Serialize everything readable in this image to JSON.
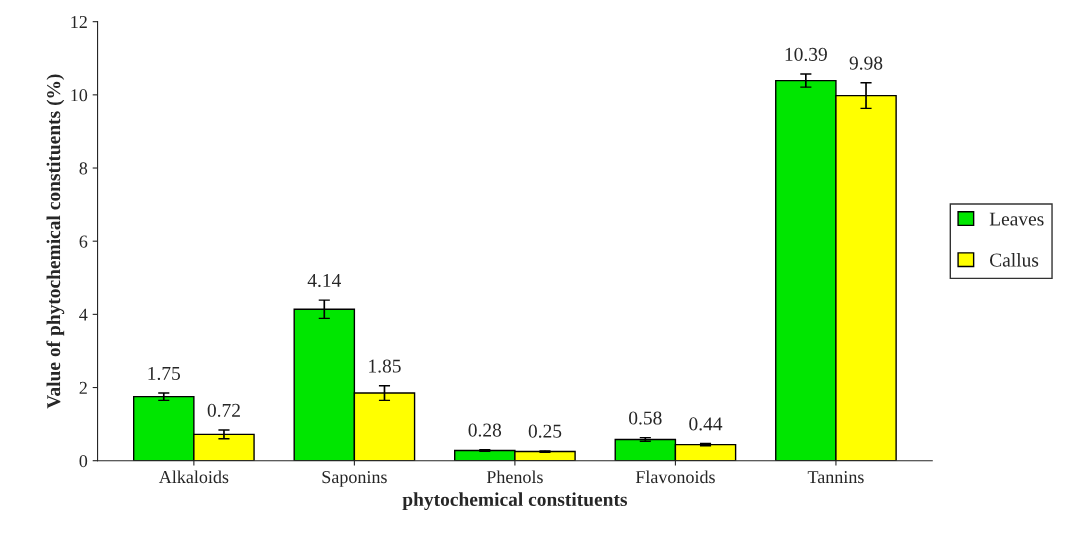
{
  "chart_data": {
    "type": "bar",
    "xlabel": "phytochemical constituents",
    "ylabel": "Value of phytochemical constituents (%)",
    "categories": [
      "Alkaloids",
      "Saponins",
      "Phenols",
      "Flavonoids",
      "Tannins"
    ],
    "series": [
      {
        "name": "Leaves",
        "color": "#00e600",
        "values": [
          1.75,
          4.14,
          0.28,
          0.58,
          10.39
        ],
        "errors": [
          0.1,
          0.25,
          0.02,
          0.05,
          0.18
        ]
      },
      {
        "name": "Callus",
        "color": "#ffff00",
        "values": [
          0.72,
          1.85,
          0.25,
          0.44,
          9.98
        ],
        "errors": [
          0.12,
          0.2,
          0.02,
          0.03,
          0.35
        ]
      }
    ],
    "ylim": [
      0,
      12
    ],
    "yticks": [
      0,
      2,
      4,
      6,
      8,
      10,
      12
    ],
    "data_labels": true,
    "legend": "right",
    "grid": false
  }
}
